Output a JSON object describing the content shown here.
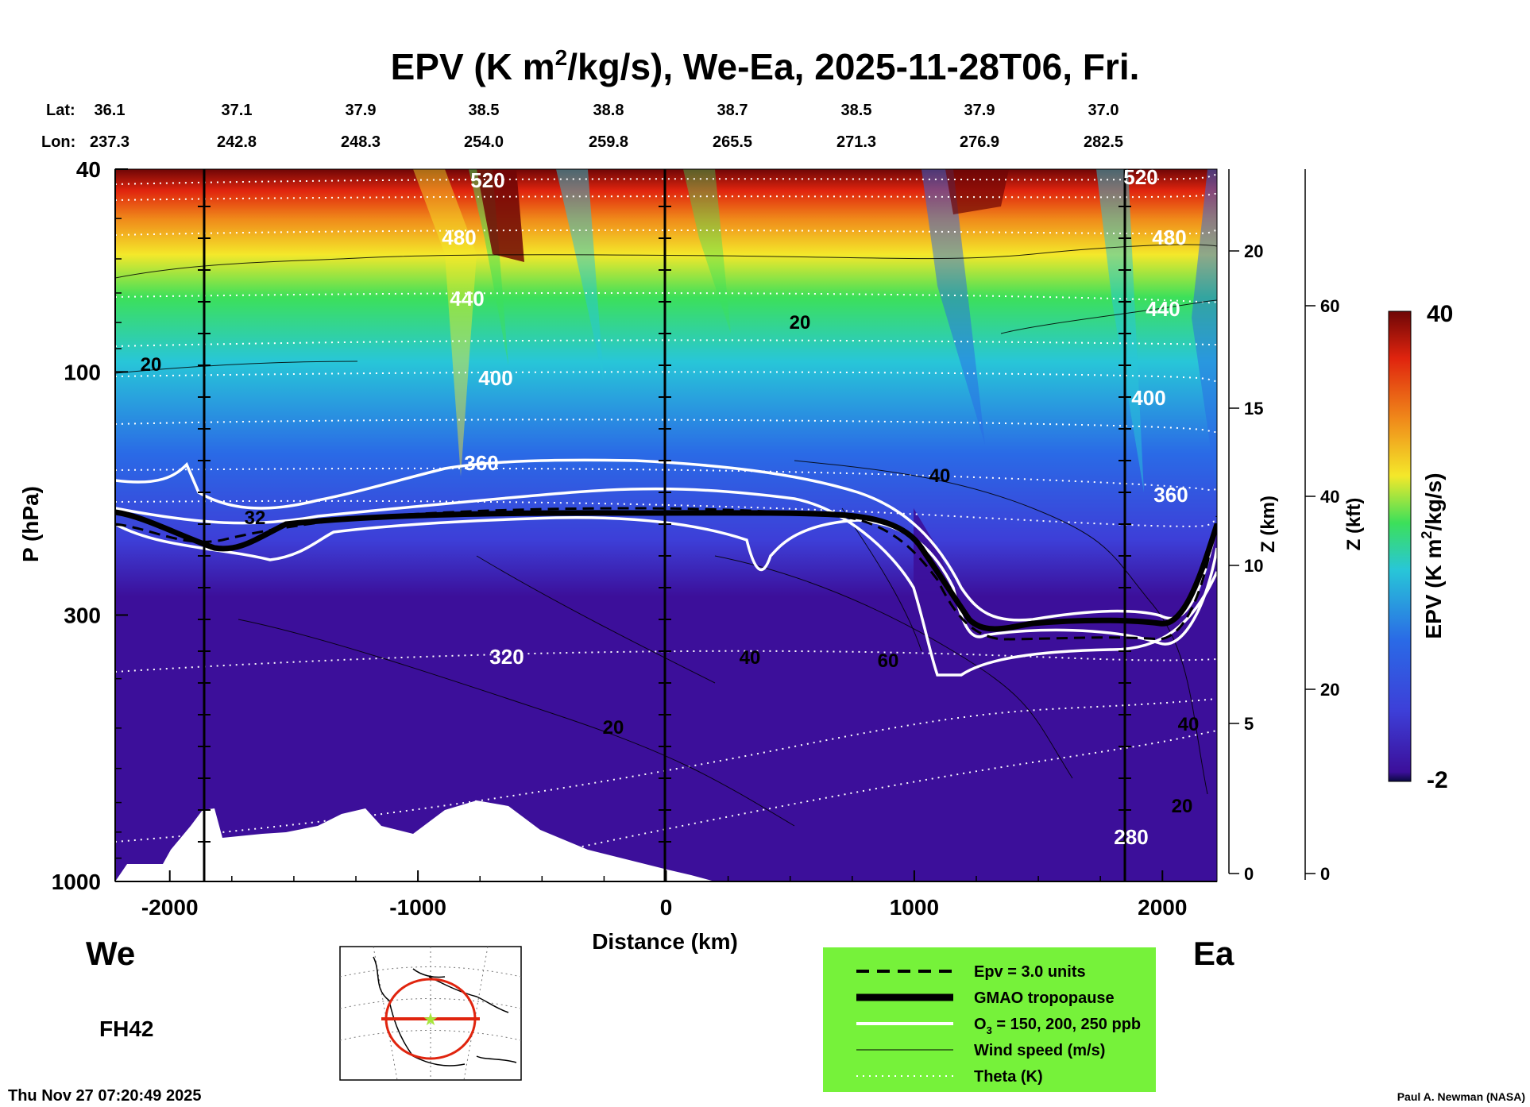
{
  "title_parts": {
    "pre": "EPV (K m",
    "sup": "2",
    "post": "/kg/s), We-Ea, 2025-11-28T06, Fri."
  },
  "lat_label": "Lat:",
  "lon_label": "Lon:",
  "lat_values": [
    "36.1",
    "37.1",
    "37.9",
    "38.5",
    "38.8",
    "38.7",
    "38.5",
    "37.9",
    "37.0"
  ],
  "lon_values": [
    "237.3",
    "242.8",
    "248.3",
    "254.0",
    "259.8",
    "265.5",
    "271.3",
    "276.9",
    "282.5"
  ],
  "side_left": "We",
  "side_right": "Ea",
  "forecast_hour": "FH42",
  "timestamp": "Thu Nov 27 07:20:49 2025",
  "credit": "Paul A. Newman (NASA)",
  "colors": {
    "purple": "#3c0f9a",
    "blue": "#2a6ae6",
    "cyan": "#28c6d8",
    "green": "#3ce05a",
    "yellow": "#f4e82a",
    "orange": "#f08a1a",
    "red": "#e0240e",
    "darkred": "#6e0606",
    "legend_bg": "#76f23a"
  },
  "chart_data": {
    "type": "heatmap",
    "title": "EPV (K m2/kg/s), We-Ea, 2025-11-28T06, Fri.",
    "xlabel": "Distance (km)",
    "ylabel": "P (hPa)",
    "xlim": [
      -2220,
      2220
    ],
    "ylim_hpa": [
      1000,
      40
    ],
    "x_ticks": [
      -2000,
      -1000,
      0,
      1000,
      2000
    ],
    "x_tick_labels": [
      "-2000",
      "-1000",
      "0",
      "1000",
      "2000"
    ],
    "y_ticks": [
      40,
      100,
      300,
      1000
    ],
    "y_tick_labels": [
      "40",
      "100",
      "300",
      "1000"
    ],
    "z_km_label": "Z (km)",
    "z_km_ticks": [
      "0",
      "5",
      "10",
      "15",
      "20"
    ],
    "z_kft_label": "Z (kft)",
    "z_kft_ticks": [
      "0",
      "20",
      "40",
      "60"
    ],
    "colorbar": {
      "label_pre": "EPV (K m",
      "label_sup": "2",
      "label_post": "/kg/s)",
      "min": -2,
      "max": 40,
      "min_label": "-2",
      "max_label": "40"
    },
    "theta_labels": [
      "520",
      "480",
      "440",
      "400",
      "360",
      "320",
      "520",
      "480",
      "440",
      "400",
      "360",
      "280"
    ],
    "wind_labels": [
      "20",
      "20",
      "40",
      "40",
      "60",
      "20",
      "40",
      "20",
      "32"
    ],
    "legend": [
      {
        "label": "Epv = 3.0 units",
        "style": "dashed"
      },
      {
        "label": "GMAO tropopause",
        "style": "thick"
      },
      {
        "label_pre": "O",
        "label_sub": "3",
        "label_post": " = 150, 200, 250 ppb",
        "style": "white"
      },
      {
        "label": "Wind speed (m/s)",
        "style": "thin"
      },
      {
        "label": "Theta (K)",
        "style": "dotted"
      }
    ]
  }
}
